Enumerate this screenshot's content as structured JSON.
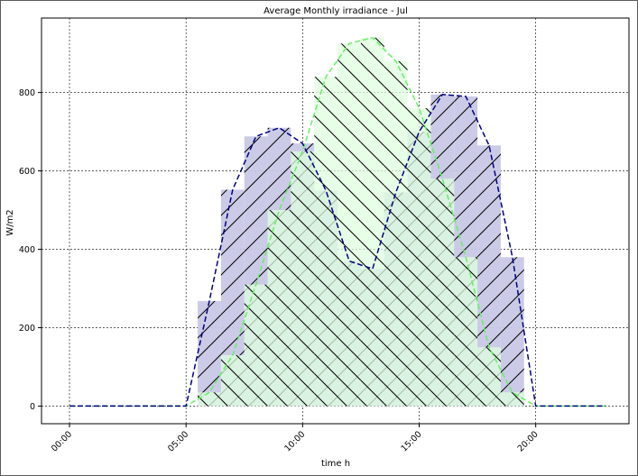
{
  "chart_data": {
    "type": "area",
    "title": "Average Monthly irradiance - Jul",
    "xlabel": "time h",
    "ylabel": "W/m2",
    "xlim": [
      -1.2,
      24.0
    ],
    "ylim": [
      -45,
      990
    ],
    "xticks": [
      {
        "value": 0,
        "label": "00:00"
      },
      {
        "value": 5,
        "label": "05:00"
      },
      {
        "value": 10,
        "label": "10:00"
      },
      {
        "value": 15,
        "label": "15:00"
      },
      {
        "value": 20,
        "label": "20:00"
      }
    ],
    "yticks": [
      0,
      200,
      400,
      600,
      800
    ],
    "grid": true,
    "x": [
      0,
      1,
      2,
      3,
      4,
      5,
      6,
      7,
      8,
      9,
      10,
      11,
      12,
      13,
      14,
      15,
      16,
      17,
      18,
      19,
      20,
      21,
      22,
      23
    ],
    "series": [
      {
        "color": "#000080",
        "fill": "#c8c8e6",
        "hatch": "/",
        "values": [
          0,
          0,
          0,
          0,
          0,
          0,
          268,
          552,
          688,
          710,
          670,
          550,
          370,
          350,
          545,
          700,
          795,
          790,
          665,
          380,
          0,
          0,
          0,
          0
        ]
      },
      {
        "color": "#66ee66",
        "fill": "#dfffdf",
        "hatch": "\\",
        "values": [
          0,
          0,
          0,
          0,
          0,
          0,
          35,
          130,
          310,
          500,
          650,
          840,
          925,
          940,
          880,
          760,
          580,
          380,
          150,
          35,
          0,
          0,
          0,
          0
        ]
      }
    ]
  }
}
